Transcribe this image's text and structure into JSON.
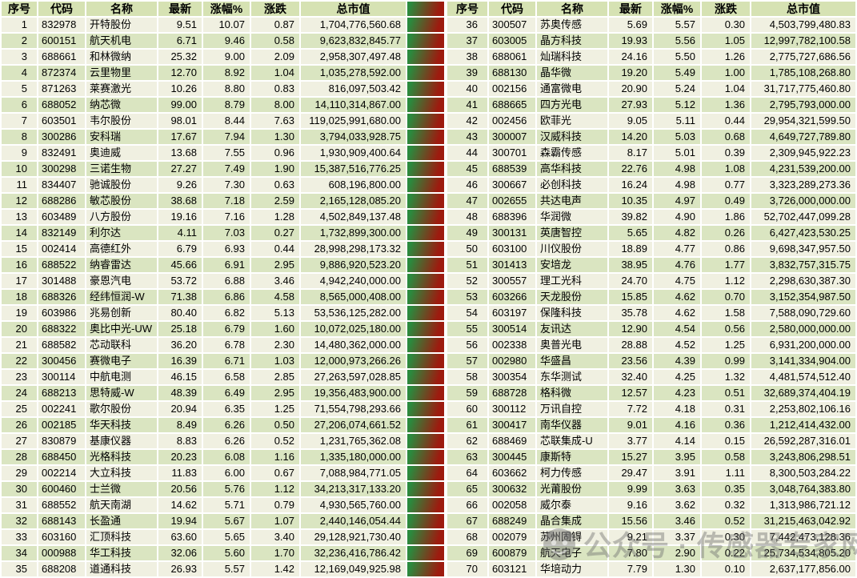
{
  "header": {
    "columns": [
      "序号",
      "代码",
      "名称",
      "最新",
      "涨幅%",
      "涨跌",
      "总市值"
    ]
  },
  "colors": {
    "header_bg": "#d6e2b3",
    "row_odd_bg": "#f0f0e1",
    "row_even_bg": "#dae5c1",
    "grid": "#ffffff",
    "gradient_from": "#2b8a3e",
    "gradient_to": "#9d1b0f",
    "watermark": "rgba(108,108,108,0.42)"
  },
  "watermark": {
    "text": "公众号 · 传感器专家网"
  },
  "left_rows": [
    [
      "1",
      "832978",
      "开特股份",
      "9.51",
      "10.07",
      "0.87",
      "1,704,776,560.68"
    ],
    [
      "2",
      "600151",
      "航天机电",
      "6.71",
      "9.46",
      "0.58",
      "9,623,832,845.77"
    ],
    [
      "3",
      "688661",
      "和林微纳",
      "25.32",
      "9.00",
      "2.09",
      "2,958,307,497.48"
    ],
    [
      "4",
      "872374",
      "云里物里",
      "12.70",
      "8.92",
      "1.04",
      "1,035,278,592.00"
    ],
    [
      "5",
      "871263",
      "莱赛激光",
      "10.26",
      "8.80",
      "0.83",
      "816,097,503.42"
    ],
    [
      "6",
      "688052",
      "纳芯微",
      "99.00",
      "8.79",
      "8.00",
      "14,110,314,867.00"
    ],
    [
      "7",
      "603501",
      "韦尔股份",
      "98.01",
      "8.44",
      "7.63",
      "119,025,991,680.00"
    ],
    [
      "8",
      "300286",
      "安科瑞",
      "17.67",
      "7.94",
      "1.30",
      "3,794,033,928.75"
    ],
    [
      "9",
      "832491",
      "奥迪威",
      "13.68",
      "7.55",
      "0.96",
      "1,930,909,400.64"
    ],
    [
      "10",
      "300298",
      "三诺生物",
      "27.27",
      "7.49",
      "1.90",
      "15,387,516,776.25"
    ],
    [
      "11",
      "834407",
      "驰诚股份",
      "9.26",
      "7.30",
      "0.63",
      "608,196,800.00"
    ],
    [
      "12",
      "688286",
      "敏芯股份",
      "38.68",
      "7.18",
      "2.59",
      "2,165,128,085.20"
    ],
    [
      "13",
      "603489",
      "八方股份",
      "19.16",
      "7.16",
      "1.28",
      "4,502,849,137.48"
    ],
    [
      "14",
      "832149",
      "利尔达",
      "4.11",
      "7.03",
      "0.27",
      "1,732,899,300.00"
    ],
    [
      "15",
      "002414",
      "高德红外",
      "6.79",
      "6.93",
      "0.44",
      "28,998,298,173.32"
    ],
    [
      "16",
      "688522",
      "纳睿雷达",
      "45.66",
      "6.91",
      "2.95",
      "9,886,920,523.20"
    ],
    [
      "17",
      "301488",
      "豪恩汽电",
      "53.72",
      "6.88",
      "3.46",
      "4,942,240,000.00"
    ],
    [
      "18",
      "688326",
      "经纬恒润-W",
      "71.38",
      "6.86",
      "4.58",
      "8,565,000,408.00"
    ],
    [
      "19",
      "603986",
      "兆易创新",
      "80.40",
      "6.82",
      "5.13",
      "53,536,125,282.00"
    ],
    [
      "20",
      "688322",
      "奥比中光-UW",
      "25.18",
      "6.79",
      "1.60",
      "10,072,025,180.00"
    ],
    [
      "21",
      "688582",
      "芯动联科",
      "36.20",
      "6.78",
      "2.30",
      "14,480,362,000.00"
    ],
    [
      "22",
      "300456",
      "赛微电子",
      "16.39",
      "6.71",
      "1.03",
      "12,000,973,266.26"
    ],
    [
      "23",
      "300114",
      "中航电测",
      "46.15",
      "6.58",
      "2.85",
      "27,263,597,028.85"
    ],
    [
      "24",
      "688213",
      "思特威-W",
      "48.39",
      "6.49",
      "2.95",
      "19,356,483,900.00"
    ],
    [
      "25",
      "002241",
      "歌尔股份",
      "20.94",
      "6.35",
      "1.25",
      "71,554,798,293.66"
    ],
    [
      "26",
      "002185",
      "华天科技",
      "8.49",
      "6.26",
      "0.50",
      "27,206,074,661.52"
    ],
    [
      "27",
      "830879",
      "基康仪器",
      "8.83",
      "6.26",
      "0.52",
      "1,231,765,362.08"
    ],
    [
      "28",
      "688450",
      "光格科技",
      "20.23",
      "6.08",
      "1.16",
      "1,335,180,000.00"
    ],
    [
      "29",
      "002214",
      "大立科技",
      "11.83",
      "6.00",
      "0.67",
      "7,088,984,771.05"
    ],
    [
      "30",
      "600460",
      "士兰微",
      "20.56",
      "5.76",
      "1.12",
      "34,213,317,133.20"
    ],
    [
      "31",
      "688552",
      "航天南湖",
      "14.62",
      "5.71",
      "0.79",
      "4,930,565,760.00"
    ],
    [
      "32",
      "688143",
      "长盈通",
      "19.94",
      "5.67",
      "1.07",
      "2,440,146,054.44"
    ],
    [
      "33",
      "603160",
      "汇顶科技",
      "63.60",
      "5.65",
      "3.40",
      "29,128,921,730.40"
    ],
    [
      "34",
      "000988",
      "华工科技",
      "32.06",
      "5.60",
      "1.70",
      "32,236,416,786.42"
    ],
    [
      "35",
      "688208",
      "道通科技",
      "26.93",
      "5.57",
      "1.42",
      "12,169,049,925.98"
    ]
  ],
  "right_rows": [
    [
      "36",
      "300507",
      "苏奥传感",
      "5.69",
      "5.57",
      "0.30",
      "4,503,799,480.83"
    ],
    [
      "37",
      "603005",
      "晶方科技",
      "19.93",
      "5.56",
      "1.05",
      "12,997,782,100.58"
    ],
    [
      "38",
      "688061",
      "灿瑞科技",
      "24.16",
      "5.50",
      "1.26",
      "2,775,727,686.56"
    ],
    [
      "39",
      "688130",
      "晶华微",
      "19.20",
      "5.49",
      "1.00",
      "1,785,108,268.80"
    ],
    [
      "40",
      "002156",
      "通富微电",
      "20.90",
      "5.24",
      "1.04",
      "31,717,775,460.80"
    ],
    [
      "41",
      "688665",
      "四方光电",
      "27.93",
      "5.12",
      "1.36",
      "2,795,793,000.00"
    ],
    [
      "42",
      "002456",
      "欧菲光",
      "9.05",
      "5.11",
      "0.44",
      "29,954,321,599.50"
    ],
    [
      "43",
      "300007",
      "汉威科技",
      "14.20",
      "5.03",
      "0.68",
      "4,649,727,789.80"
    ],
    [
      "44",
      "300701",
      "森霸传感",
      "8.17",
      "5.01",
      "0.39",
      "2,309,945,922.23"
    ],
    [
      "45",
      "688539",
      "高华科技",
      "22.76",
      "4.98",
      "1.08",
      "4,231,539,200.00"
    ],
    [
      "46",
      "300667",
      "必创科技",
      "16.24",
      "4.98",
      "0.77",
      "3,323,289,273.36"
    ],
    [
      "47",
      "002655",
      "共达电声",
      "10.35",
      "4.97",
      "0.49",
      "3,726,000,000.00"
    ],
    [
      "48",
      "688396",
      "华润微",
      "39.82",
      "4.90",
      "1.86",
      "52,702,447,099.28"
    ],
    [
      "49",
      "300131",
      "英唐智控",
      "5.65",
      "4.82",
      "0.26",
      "6,427,423,530.25"
    ],
    [
      "50",
      "603100",
      "川仪股份",
      "18.89",
      "4.77",
      "0.86",
      "9,698,347,957.50"
    ],
    [
      "51",
      "301413",
      "安培龙",
      "38.95",
      "4.76",
      "1.77",
      "3,832,757,315.75"
    ],
    [
      "52",
      "300557",
      "理工光科",
      "24.70",
      "4.75",
      "1.12",
      "2,298,630,387.30"
    ],
    [
      "53",
      "603266",
      "天龙股份",
      "15.85",
      "4.62",
      "0.70",
      "3,152,354,987.50"
    ],
    [
      "54",
      "603197",
      "保隆科技",
      "35.78",
      "4.62",
      "1.58",
      "7,588,090,729.60"
    ],
    [
      "55",
      "300514",
      "友讯达",
      "12.90",
      "4.54",
      "0.56",
      "2,580,000,000.00"
    ],
    [
      "56",
      "002338",
      "奥普光电",
      "28.88",
      "4.52",
      "1.25",
      "6,931,200,000.00"
    ],
    [
      "57",
      "002980",
      "华盛昌",
      "23.56",
      "4.39",
      "0.99",
      "3,141,334,904.00"
    ],
    [
      "58",
      "300354",
      "东华测试",
      "32.40",
      "4.25",
      "1.32",
      "4,481,574,512.40"
    ],
    [
      "59",
      "688728",
      "格科微",
      "12.57",
      "4.23",
      "0.51",
      "32,689,374,404.19"
    ],
    [
      "60",
      "300112",
      "万讯自控",
      "7.72",
      "4.18",
      "0.31",
      "2,253,802,106.16"
    ],
    [
      "61",
      "300417",
      "南华仪器",
      "9.01",
      "4.16",
      "0.36",
      "1,212,414,432.00"
    ],
    [
      "62",
      "688469",
      "芯联集成-U",
      "3.77",
      "4.14",
      "0.15",
      "26,592,287,316.01"
    ],
    [
      "63",
      "300445",
      "康斯特",
      "15.27",
      "3.95",
      "0.58",
      "3,243,806,298.51"
    ],
    [
      "64",
      "603662",
      "柯力传感",
      "29.47",
      "3.91",
      "1.11",
      "8,300,503,284.22"
    ],
    [
      "65",
      "300632",
      "光莆股份",
      "9.99",
      "3.63",
      "0.35",
      "3,048,764,383.80"
    ],
    [
      "66",
      "002058",
      "威尔泰",
      "9.16",
      "3.62",
      "0.32",
      "1,313,986,721.12"
    ],
    [
      "67",
      "688249",
      "晶合集成",
      "15.56",
      "3.46",
      "0.52",
      "31,215,463,042.92"
    ],
    [
      "68",
      "002079",
      "苏州固锝",
      "9.21",
      "3.37",
      "0.30",
      "7,442,473,128.36"
    ],
    [
      "69",
      "600879",
      "航天电子",
      "7.80",
      "2.90",
      "0.22",
      "25,734,534,805.20"
    ],
    [
      "70",
      "603121",
      "华培动力",
      "7.79",
      "1.30",
      "0.10",
      "2,637,177,856.00"
    ]
  ]
}
